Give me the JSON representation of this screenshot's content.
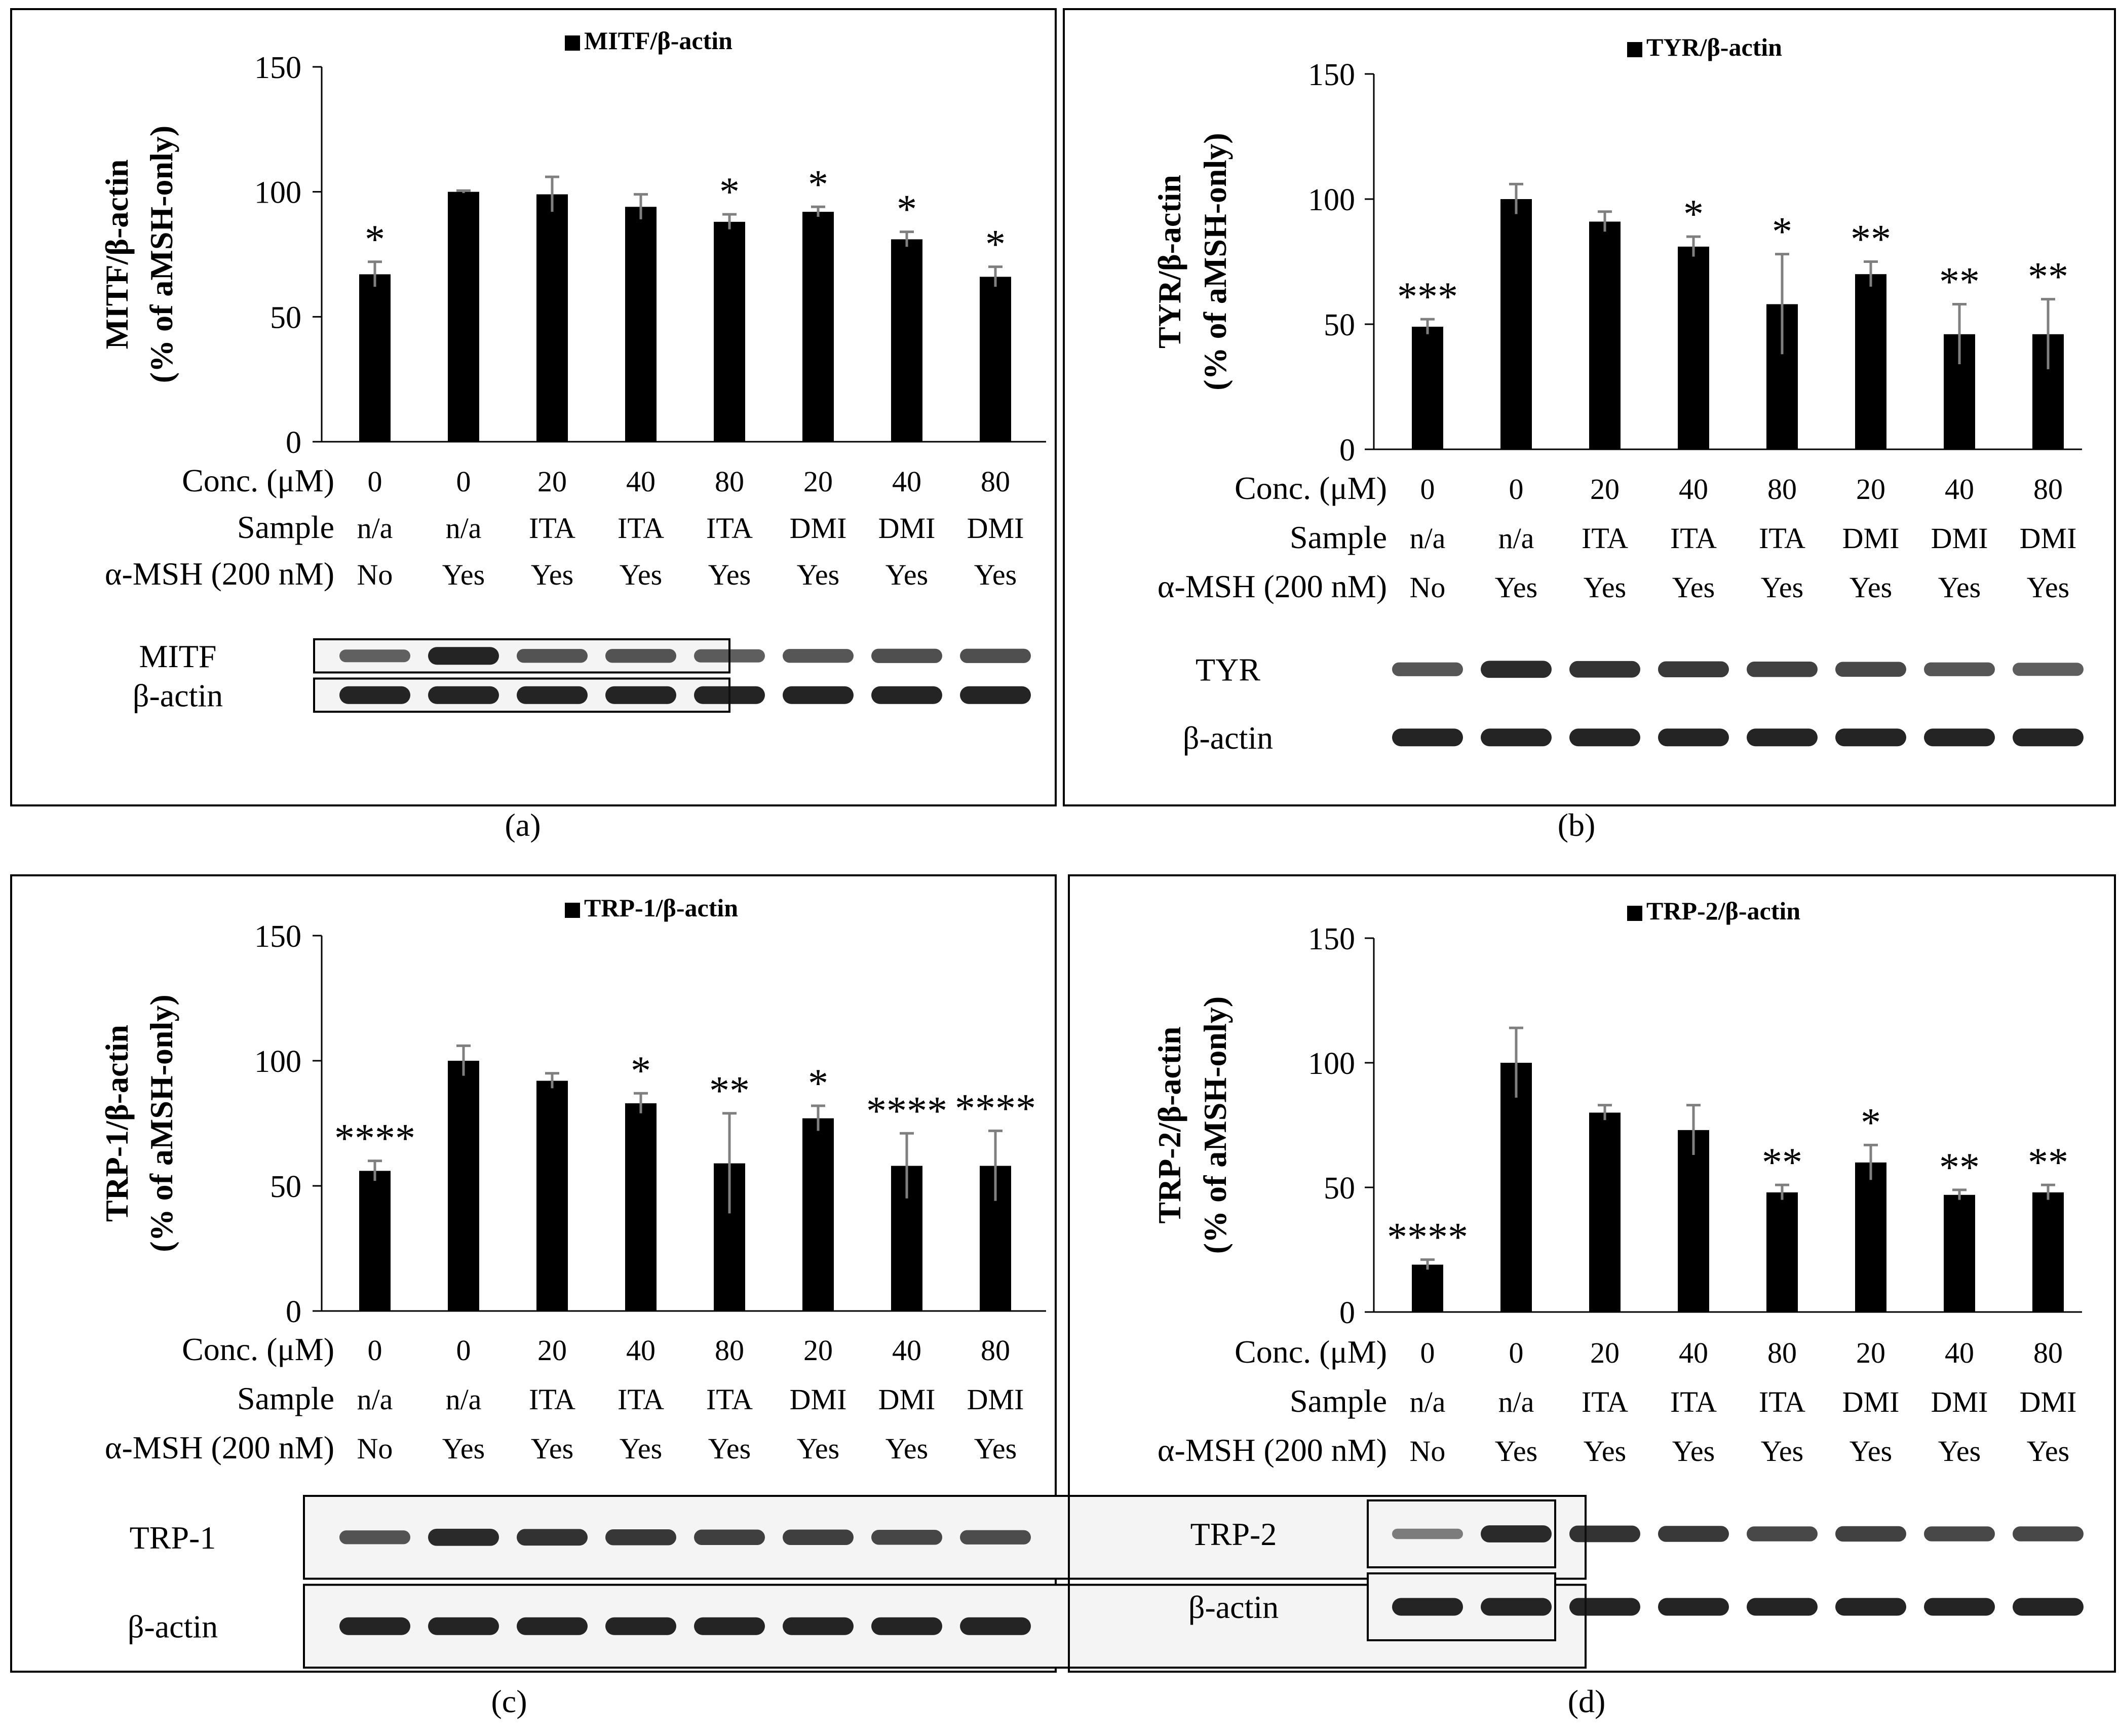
{
  "figure": {
    "row_labels": [
      "Conc. (μM)",
      "Sample",
      "α-MSH (200 nM)"
    ],
    "actin_label": "β-actin",
    "colors": {
      "bar": "#000000",
      "error": "#7f7f7f",
      "band": "#111111",
      "frame": "#000000"
    }
  },
  "chart_data": [
    {
      "type": "bar",
      "panel_label": "(a)",
      "title": "MITF/β-actin",
      "legend": "MITF/β-actin",
      "ylabel_line1": "MITF/β-actin",
      "ylabel_line2": "(% of aMSH-only)",
      "ylim": [
        0,
        150
      ],
      "yticks": [
        "0",
        "50",
        "100",
        "150"
      ],
      "conc": [
        "0",
        "0",
        "20",
        "40",
        "80",
        "20",
        "40",
        "80"
      ],
      "sample": [
        "n/a",
        "n/a",
        "ITA",
        "ITA",
        "ITA",
        "DMI",
        "DMI",
        "DMI"
      ],
      "msh": [
        "No",
        "Yes",
        "Yes",
        "Yes",
        "Yes",
        "Yes",
        "Yes",
        "Yes"
      ],
      "values": [
        67,
        100,
        99,
        94,
        88,
        92,
        81,
        66
      ],
      "errors": [
        5,
        0.5,
        7,
        5,
        3,
        2,
        3,
        4
      ],
      "sig": [
        "*",
        "",
        "",
        "",
        "*",
        "*",
        "*",
        "*"
      ],
      "blot_label": "MITF",
      "band_intensity": [
        0.5,
        0.95,
        0.6,
        0.6,
        0.55,
        0.6,
        0.65,
        0.65
      ]
    },
    {
      "type": "bar",
      "panel_label": "(b)",
      "title": "TYR/β-actin",
      "legend": "TYR/β-actin",
      "ylabel_line1": "TYR/β-actin",
      "ylabel_line2": "(% of aMSH-only)",
      "ylim": [
        0,
        150
      ],
      "yticks": [
        "0",
        "50",
        "100",
        "150"
      ],
      "conc": [
        "0",
        "0",
        "20",
        "40",
        "80",
        "20",
        "40",
        "80"
      ],
      "sample": [
        "n/a",
        "n/a",
        "ITA",
        "ITA",
        "ITA",
        "DMI",
        "DMI",
        "DMI"
      ],
      "msh": [
        "No",
        "Yes",
        "Yes",
        "Yes",
        "Yes",
        "Yes",
        "Yes",
        "Yes"
      ],
      "values": [
        49,
        100,
        91,
        81,
        58,
        70,
        46,
        46
      ],
      "errors": [
        3,
        6,
        4,
        4,
        20,
        5,
        12,
        14
      ],
      "sig": [
        "***",
        "",
        "",
        "*",
        "*",
        "**",
        "**",
        "**"
      ],
      "blot_label": "TYR",
      "band_intensity": [
        0.6,
        0.9,
        0.85,
        0.8,
        0.75,
        0.7,
        0.6,
        0.55
      ]
    },
    {
      "type": "bar",
      "panel_label": "(c)",
      "title": "TRP-1/β-actin",
      "legend": "TRP-1/β-actin",
      "ylabel_line1": "TRP-1/β-actin",
      "ylabel_line2": "(% of aMSH-only)",
      "ylim": [
        0,
        150
      ],
      "yticks": [
        "0",
        "50",
        "100",
        "150"
      ],
      "conc": [
        "0",
        "0",
        "20",
        "40",
        "80",
        "20",
        "40",
        "80"
      ],
      "sample": [
        "n/a",
        "n/a",
        "ITA",
        "ITA",
        "ITA",
        "DMI",
        "DMI",
        "DMI"
      ],
      "msh": [
        "No",
        "Yes",
        "Yes",
        "Yes",
        "Yes",
        "Yes",
        "Yes",
        "Yes"
      ],
      "values": [
        56,
        100,
        92,
        83,
        59,
        77,
        58,
        58
      ],
      "errors": [
        4,
        6,
        3,
        4,
        20,
        5,
        13,
        14
      ],
      "sig": [
        "****",
        "",
        "",
        "*",
        "**",
        "*",
        "****",
        "****"
      ],
      "blot_label": "TRP-1",
      "band_intensity": [
        0.6,
        0.9,
        0.85,
        0.8,
        0.75,
        0.75,
        0.7,
        0.65
      ]
    },
    {
      "type": "bar",
      "panel_label": "(d)",
      "title": "TRP-2/β-actin",
      "legend": "TRP-2/β-actin",
      "ylabel_line1": "TRP-2/β-actin",
      "ylabel_line2": "(% of aMSH-only)",
      "ylim": [
        0,
        150
      ],
      "yticks": [
        "0",
        "50",
        "100",
        "150"
      ],
      "conc": [
        "0",
        "0",
        "20",
        "40",
        "80",
        "20",
        "40",
        "80"
      ],
      "sample": [
        "n/a",
        "n/a",
        "ITA",
        "ITA",
        "ITA",
        "DMI",
        "DMI",
        "DMI"
      ],
      "msh": [
        "No",
        "Yes",
        "Yes",
        "Yes",
        "Yes",
        "Yes",
        "Yes",
        "Yes"
      ],
      "values": [
        19,
        100,
        80,
        73,
        48,
        60,
        47,
        48
      ],
      "errors": [
        2,
        14,
        3,
        10,
        3,
        7,
        2,
        3
      ],
      "sig": [
        "****",
        "",
        "",
        "",
        "**",
        "*",
        "**",
        "**"
      ],
      "blot_label": "TRP-2",
      "band_intensity": [
        0.3,
        0.9,
        0.85,
        0.8,
        0.7,
        0.75,
        0.7,
        0.7
      ]
    }
  ]
}
